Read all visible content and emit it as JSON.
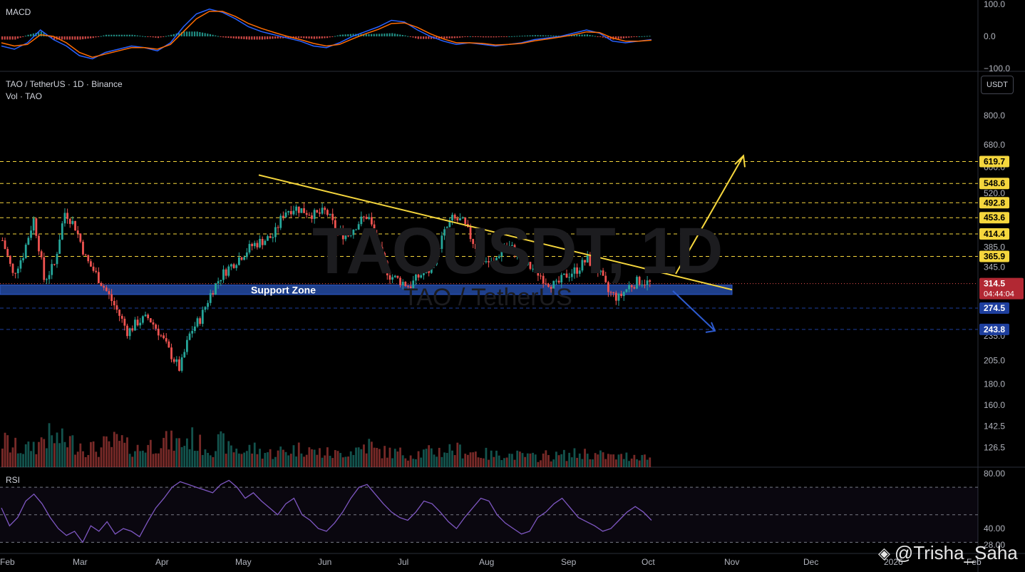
{
  "macd_pane": {
    "title": "MACD"
  },
  "main_pane": {
    "title": "TAO / TetherUS · 1D · Binance",
    "volume_title": "Vol · TAO",
    "unit_button": "USDT",
    "watermark_symbol": "TAOUSDT, 1D",
    "watermark_name": "TAO / TetherUS",
    "support_label": "Support Zone"
  },
  "rsi_pane": {
    "title": "RSI"
  },
  "credit": {
    "logo": "binance-logo-icon",
    "handle": "@Trisha_Saha"
  },
  "colors": {
    "up": "#26a69a",
    "down": "#ef5350",
    "trend": "#f5d63d",
    "support_zone": "#1e3f8a",
    "level_yellow": "#f5d63d",
    "level_blue": "#1e3f9e",
    "rsi": "#7e57c2",
    "macd": "#2962ff",
    "signal": "#ff6d00"
  },
  "chart_data": [
    {
      "type": "line",
      "name": "MACD",
      "y_ticks": [
        "100.0",
        "0.0",
        "−100.0"
      ],
      "ylim": [
        -100,
        100
      ],
      "x": [
        0,
        5,
        10,
        15,
        20,
        25,
        30,
        35,
        40,
        45,
        50,
        55,
        60,
        65,
        70,
        75,
        80,
        85,
        90,
        95,
        100,
        105,
        110,
        115,
        120,
        125,
        130,
        135,
        140,
        145,
        150,
        155,
        160,
        165,
        170,
        175,
        180,
        185,
        190,
        195,
        200,
        205,
        210,
        215,
        220,
        225,
        230,
        235,
        240,
        245,
        250
      ],
      "series": [
        {
          "values": [
            -30,
            -40,
            -20,
            20,
            -10,
            -30,
            -60,
            -70,
            -50,
            -40,
            -30,
            -35,
            -45,
            -20,
            30,
            70,
            85,
            75,
            55,
            30,
            15,
            5,
            -5,
            -15,
            -30,
            -35,
            -20,
            0,
            15,
            30,
            50,
            45,
            20,
            0,
            -15,
            -25,
            -20,
            -25,
            -30,
            -25,
            -20,
            -10,
            -5,
            0,
            10,
            20,
            10,
            -15,
            -20,
            -15,
            -10
          ]
        },
        {
          "values": [
            -20,
            -30,
            -25,
            5,
            0,
            -20,
            -50,
            -65,
            -55,
            -45,
            -35,
            -35,
            -40,
            -25,
            15,
            55,
            78,
            78,
            62,
            40,
            25,
            12,
            0,
            -10,
            -22,
            -30,
            -25,
            -8,
            8,
            22,
            40,
            42,
            28,
            8,
            -8,
            -20,
            -20,
            -22,
            -27,
            -25,
            -22,
            -14,
            -8,
            -2,
            5,
            14,
            12,
            -5,
            -15,
            -15,
            -12
          ]
        },
        {
          "values": [
            -10,
            -10,
            5,
            15,
            -10,
            -10,
            -10,
            -5,
            5,
            5,
            5,
            0,
            -5,
            5,
            15,
            15,
            7,
            -3,
            -7,
            -10,
            -10,
            -7,
            -5,
            -5,
            -8,
            -5,
            5,
            8,
            7,
            8,
            10,
            3,
            -8,
            -8,
            -7,
            -5,
            0,
            -3,
            -3,
            0,
            2,
            4,
            3,
            2,
            5,
            6,
            -2,
            -10,
            -5,
            0,
            2
          ]
        }
      ]
    },
    {
      "type": "candlestick",
      "name": "TAO / TetherUS · 1D · Binance",
      "x_ticks": [
        "Feb",
        "Mar",
        "Apr",
        "May",
        "Jun",
        "Jul",
        "Aug",
        "Sep",
        "Oct",
        "Nov",
        "Dec",
        "2026",
        "Feb"
      ],
      "y_ticks": [
        "800.0",
        "680.0",
        "600.0",
        "520.0",
        "385.0",
        "345.0",
        "235.0",
        "205.0",
        "180.0",
        "160.0",
        "142.5",
        "126.5"
      ],
      "yscale": "log",
      "ylim": [
        118,
        880
      ],
      "price_levels": [
        {
          "value": 619.7,
          "label": "619.7",
          "color": "yellow"
        },
        {
          "value": 548.6,
          "label": "548.6",
          "color": "yellow"
        },
        {
          "value": 492.8,
          "label": "492.8",
          "color": "yellow"
        },
        {
          "value": 453.6,
          "label": "453.6",
          "color": "yellow"
        },
        {
          "value": 414.4,
          "label": "414.4",
          "color": "yellow"
        },
        {
          "value": 365.9,
          "label": "365.9",
          "color": "yellow"
        },
        {
          "value": 274.5,
          "label": "274.5",
          "color": "blue"
        },
        {
          "value": 243.8,
          "label": "243.8",
          "color": "blue"
        }
      ],
      "last_price": {
        "value": 314.5,
        "label": "314.5",
        "countdown": "04:44:04"
      },
      "support_zone": {
        "low": 296,
        "high": 312
      },
      "close_path": [
        400,
        330,
        370,
        450,
        320,
        350,
        470,
        430,
        360,
        330,
        300,
        270,
        240,
        255,
        260,
        240,
        215,
        195,
        240,
        260,
        300,
        330,
        350,
        370,
        390,
        400,
        410,
        470,
        480,
        470,
        460,
        470,
        420,
        410,
        440,
        460,
        380,
        330,
        320,
        310,
        330,
        340,
        400,
        450,
        445,
        400,
        360,
        350,
        390,
        380,
        350,
        340,
        320,
        310,
        330,
        340,
        360,
        340,
        300,
        290,
        310,
        320,
        315
      ],
      "volume_path": [
        25,
        20,
        18,
        22,
        30,
        28,
        26,
        24,
        20,
        18,
        22,
        25,
        20,
        18,
        22,
        26,
        25,
        24,
        28,
        22,
        20,
        24,
        18,
        16,
        18,
        15,
        14,
        16,
        18,
        20,
        15,
        14,
        13,
        16,
        18,
        22,
        16,
        15,
        14,
        13,
        14,
        15,
        16,
        18,
        17,
        15,
        13,
        12,
        14,
        12,
        11,
        10,
        12,
        11,
        12,
        13,
        14,
        12,
        11,
        10,
        11,
        12,
        10
      ]
    },
    {
      "type": "line",
      "name": "RSI",
      "y_ticks": [
        "80.00",
        "40.00",
        "28.00"
      ],
      "ylim": [
        25,
        82
      ],
      "values": [
        55,
        42,
        48,
        60,
        65,
        58,
        48,
        40,
        35,
        38,
        30,
        42,
        38,
        45,
        36,
        40,
        38,
        34,
        45,
        55,
        62,
        70,
        74,
        72,
        70,
        68,
        66,
        72,
        75,
        70,
        62,
        66,
        60,
        55,
        50,
        58,
        62,
        50,
        46,
        40,
        38,
        44,
        52,
        62,
        70,
        72,
        65,
        58,
        52,
        48,
        46,
        52,
        60,
        58,
        52,
        45,
        40,
        48,
        55,
        62,
        60,
        50,
        44,
        40,
        36,
        38,
        48,
        52,
        58,
        62,
        55,
        48,
        45,
        42,
        38,
        40,
        46,
        52,
        56,
        52,
        46
      ]
    }
  ]
}
